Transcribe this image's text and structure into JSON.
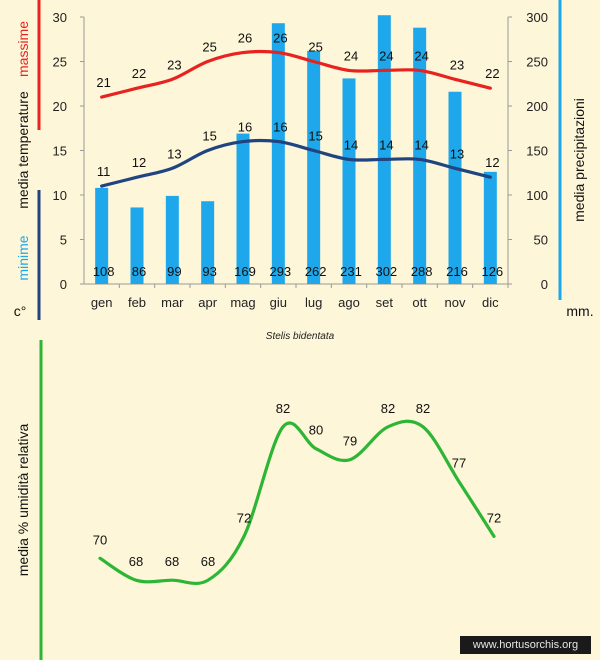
{
  "chart_data": [
    {
      "type": "bar",
      "subtitle": "Stelis bidentata",
      "categories": [
        "gen",
        "feb",
        "mar",
        "apr",
        "mag",
        "giu",
        "lug",
        "ago",
        "set",
        "ott",
        "nov",
        "dic"
      ],
      "series": [
        {
          "name": "media precipitazioni",
          "axis": "right",
          "color": "#1ea7ea",
          "values": [
            108,
            86,
            99,
            93,
            169,
            293,
            262,
            231,
            302,
            288,
            216,
            126
          ]
        },
        {
          "name": "massime",
          "type": "line",
          "axis": "left",
          "color": "#e8231f",
          "values": [
            21,
            22,
            23,
            25,
            26,
            26,
            25,
            24,
            24,
            24,
            23,
            22
          ]
        },
        {
          "name": "minime",
          "type": "line",
          "axis": "left",
          "color": "#1f3f7a",
          "values": [
            11,
            12,
            13,
            15,
            16,
            16,
            15,
            14,
            14,
            14,
            13,
            12
          ]
        }
      ],
      "left_axis": {
        "ylim": [
          0,
          30
        ],
        "ticks": [
          "0",
          "5",
          "10",
          "15",
          "20",
          "25",
          "30"
        ],
        "label_parts": {
          "massime": "massime",
          "media_temperature": "media  temperature",
          "minime": "minime",
          "unit": "c°"
        }
      },
      "right_axis": {
        "ylim": [
          0,
          300
        ],
        "ticks": [
          "0",
          "50",
          "100",
          "150",
          "200",
          "250",
          "300"
        ],
        "label": "media  precipitazioni",
        "unit": "mm."
      },
      "colors": {
        "max": "#e8231f",
        "min": "#1f4480",
        "bars": "#1ea7ea",
        "axis": "#999999"
      }
    },
    {
      "type": "line",
      "ylabel": "media %  umidità relativa",
      "values": [
        70,
        68,
        68,
        68,
        72,
        82,
        80,
        79,
        82,
        82,
        77,
        72
      ],
      "ylim": [
        64,
        86
      ],
      "color": "#2db535",
      "axis_color": "#2db535"
    }
  ],
  "watermark": "www.hortusorchis.org"
}
